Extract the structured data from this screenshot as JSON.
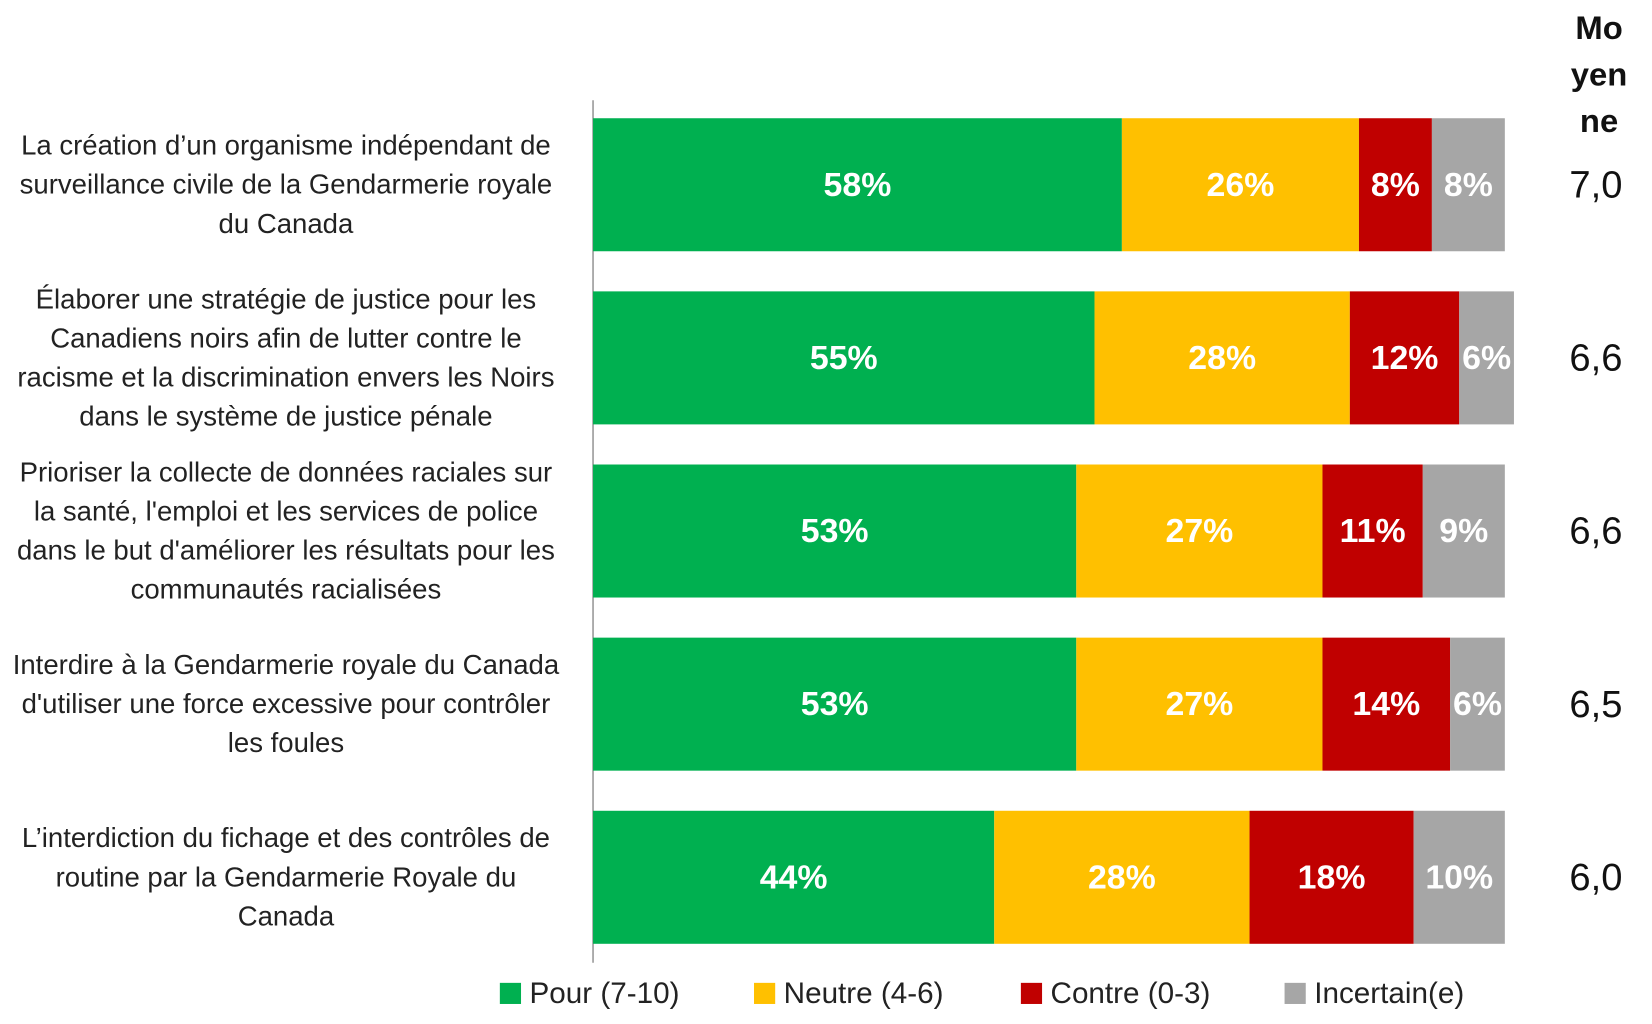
{
  "chart_data": {
    "type": "bar",
    "orientation": "horizontal",
    "stacked": true,
    "categories": [
      "La création d’un organisme indépendant de surveillance civile de la Gendarmerie royale du Canada",
      "Élaborer une stratégie de justice pour les Canadiens noirs afin de lutter contre le racisme et la discrimination envers les Noirs dans le système de justice pénale",
      "Prioriser la collecte de données raciales sur la santé, l'emploi et les services de police dans le but d'améliorer les résultats pour les communautés racialisées",
      "Interdire à la Gendarmerie royale du Canada d'utiliser une force excessive pour contrôler les foules",
      "L’interdiction du fichage et des contrôles de routine par la Gendarmerie Royale du Canada"
    ],
    "series": [
      {
        "name": "Pour (7-10)",
        "color": "#00b050",
        "values": [
          58,
          55,
          53,
          53,
          44
        ],
        "value_labels": [
          "58%",
          "55%",
          "53%",
          "53%",
          "44%"
        ]
      },
      {
        "name": "Neutre (4-6)",
        "color": "#ffc000",
        "values": [
          26,
          28,
          27,
          27,
          28
        ],
        "value_labels": [
          "26%",
          "28%",
          "27%",
          "27%",
          "28%"
        ]
      },
      {
        "name": "Contre (0-3)",
        "color": "#c00000",
        "values": [
          8,
          12,
          11,
          14,
          18
        ],
        "value_labels": [
          "8%",
          "12%",
          "11%",
          "14%",
          "18%"
        ]
      },
      {
        "name": "Incertain(e)",
        "color": "#a6a6a6",
        "values": [
          8,
          6,
          9,
          6,
          10
        ],
        "value_labels": [
          "8%",
          "6%",
          "9%",
          "6%",
          "10%"
        ]
      }
    ],
    "xlim": [
      0,
      100
    ],
    "mean_header": "Moyenne",
    "means": [
      "7,0",
      "6,6",
      "6,6",
      "6,5",
      "6,0"
    ],
    "legend": "bottom"
  }
}
